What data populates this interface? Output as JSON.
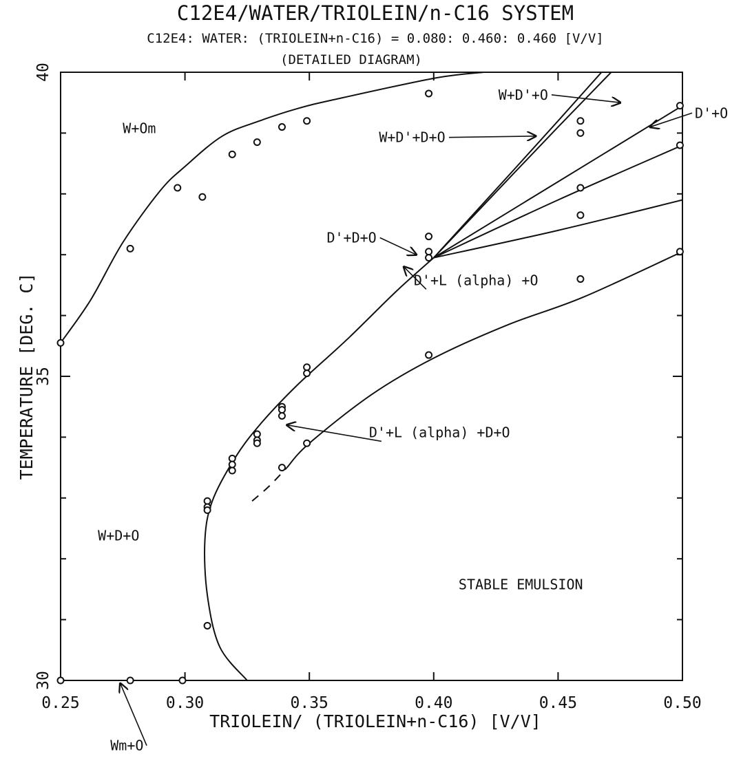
{
  "chart_data": {
    "type": "scatter",
    "title": "C12E4/WATER/TRIOLEIN/n-C16 SYSTEM",
    "subtitle": "C12E4: WATER: (TRIOLEIN+n-C16) = 0.080: 0.460: 0.460 [V/V]",
    "subtitle2": "(DETAILED DIAGRAM)",
    "xlabel": "TRIOLEIN/ (TRIOLEIN+n-C16) [V/V]",
    "ylabel": "TEMPERATURE [DEG. C]",
    "xlim": [
      0.25,
      0.5
    ],
    "ylim": [
      30,
      40
    ],
    "x_ticks": [
      0.25,
      0.3,
      0.35,
      0.4,
      0.45,
      0.5
    ],
    "x_tick_labels": [
      "0.25",
      "0.30",
      "0.35",
      "0.40",
      "0.45",
      "0.50"
    ],
    "y_ticks": [
      30,
      35,
      40
    ],
    "y_tick_labels": [
      "30",
      "35",
      "40"
    ],
    "grid": false,
    "curves": [
      {
        "x": [
          0.25,
          0.262,
          0.275,
          0.29,
          0.3,
          0.315,
          0.33,
          0.345,
          0.36,
          0.4,
          0.42
        ],
        "y": [
          35.55,
          36.25,
          37.2,
          38.05,
          38.45,
          38.95,
          39.2,
          39.4,
          39.55,
          39.9,
          40.0
        ]
      },
      {
        "x": [
          0.25,
          0.325
        ],
        "y": [
          30.0,
          30.0
        ]
      },
      {
        "x": [
          0.325,
          0.314,
          0.309,
          0.308,
          0.311,
          0.32,
          0.33,
          0.345,
          0.365,
          0.385,
          0.4
        ],
        "y": [
          30.0,
          30.55,
          31.4,
          32.3,
          32.95,
          33.65,
          34.2,
          34.85,
          35.6,
          36.4,
          36.95
        ]
      },
      {
        "x": [
          0.4,
          0.45,
          0.5
        ],
        "y": [
          36.95,
          39.2,
          41.5
        ]
      },
      {
        "x": [
          0.4,
          0.45,
          0.5
        ],
        "y": [
          36.95,
          39.1,
          41.2
        ]
      },
      {
        "x": [
          0.4,
          0.45,
          0.5
        ],
        "y": [
          36.95,
          38.2,
          39.45
        ]
      },
      {
        "x": [
          0.4,
          0.45,
          0.5
        ],
        "y": [
          36.95,
          37.9,
          38.8
        ]
      },
      {
        "x": [
          0.4,
          0.45,
          0.5
        ],
        "y": [
          36.95,
          37.4,
          37.9
        ]
      },
      {
        "x": [
          0.341,
          0.35,
          0.375,
          0.4,
          0.43,
          0.46,
          0.5
        ],
        "y": [
          33.5,
          33.9,
          34.7,
          35.3,
          35.85,
          36.3,
          37.05
        ]
      }
    ],
    "dashed_curves": [
      {
        "x": [
          0.327,
          0.334,
          0.341
        ],
        "y": [
          32.95,
          33.2,
          33.5
        ]
      }
    ],
    "points": [
      {
        "x": 0.25,
        "y": 35.55
      },
      {
        "x": 0.278,
        "y": 37.1
      },
      {
        "x": 0.297,
        "y": 38.1
      },
      {
        "x": 0.307,
        "y": 37.95
      },
      {
        "x": 0.319,
        "y": 38.65
      },
      {
        "x": 0.329,
        "y": 38.85
      },
      {
        "x": 0.339,
        "y": 39.1
      },
      {
        "x": 0.349,
        "y": 39.2
      },
      {
        "x": 0.398,
        "y": 39.65
      },
      {
        "x": 0.459,
        "y": 39.2
      },
      {
        "x": 0.459,
        "y": 39.0
      },
      {
        "x": 0.459,
        "y": 38.1
      },
      {
        "x": 0.459,
        "y": 37.65
      },
      {
        "x": 0.459,
        "y": 36.6
      },
      {
        "x": 0.499,
        "y": 39.45
      },
      {
        "x": 0.499,
        "y": 38.8
      },
      {
        "x": 0.499,
        "y": 37.05
      },
      {
        "x": 0.398,
        "y": 37.3
      },
      {
        "x": 0.398,
        "y": 37.05
      },
      {
        "x": 0.398,
        "y": 36.95
      },
      {
        "x": 0.349,
        "y": 35.15
      },
      {
        "x": 0.349,
        "y": 35.05
      },
      {
        "x": 0.339,
        "y": 34.5
      },
      {
        "x": 0.339,
        "y": 34.45
      },
      {
        "x": 0.339,
        "y": 34.35
      },
      {
        "x": 0.329,
        "y": 34.05
      },
      {
        "x": 0.329,
        "y": 33.95
      },
      {
        "x": 0.329,
        "y": 33.9
      },
      {
        "x": 0.319,
        "y": 33.65
      },
      {
        "x": 0.319,
        "y": 33.55
      },
      {
        "x": 0.319,
        "y": 33.45
      },
      {
        "x": 0.309,
        "y": 32.95
      },
      {
        "x": 0.309,
        "y": 32.85
      },
      {
        "x": 0.309,
        "y": 32.8
      },
      {
        "x": 0.309,
        "y": 30.9
      },
      {
        "x": 0.398,
        "y": 35.35
      },
      {
        "x": 0.349,
        "y": 33.9
      },
      {
        "x": 0.339,
        "y": 33.5
      },
      {
        "x": 0.25,
        "y": 30.0
      },
      {
        "x": 0.278,
        "y": 30.0
      },
      {
        "x": 0.299,
        "y": 30.0
      }
    ],
    "annotations": [
      {
        "text": "W+Om",
        "x": 0.275,
        "y": 39.0
      },
      {
        "text": "W+D'+O",
        "x": 0.426,
        "y": 39.55,
        "arrow_to": {
          "x": 0.475,
          "y": 39.5
        }
      },
      {
        "text": "D'+O",
        "x": 0.505,
        "y": 39.25,
        "arrow_to": {
          "x": 0.487,
          "y": 39.1
        }
      },
      {
        "text": "W+D'+D+O",
        "x": 0.378,
        "y": 38.85,
        "arrow_to": {
          "x": 0.441,
          "y": 38.95
        }
      },
      {
        "text": "D'+D+O",
        "x": 0.357,
        "y": 37.2,
        "arrow_to": {
          "x": 0.393,
          "y": 37.0
        }
      },
      {
        "text": "D'+L (alpha) +O",
        "x": 0.392,
        "y": 36.5,
        "arrow_to": {
          "x": 0.388,
          "y": 36.8
        }
      },
      {
        "text": "D'+L (alpha) +D+O",
        "x": 0.374,
        "y": 34.0,
        "arrow_to": {
          "x": 0.341,
          "y": 34.2
        }
      },
      {
        "text": "W+D+O",
        "x": 0.265,
        "y": 32.3
      },
      {
        "text": "STABLE EMULSION",
        "x": 0.41,
        "y": 31.5
      },
      {
        "text": "Wm+O",
        "x": 0.27,
        "y": 28.85,
        "arrow_to": {
          "x": 0.274,
          "y": 29.95
        }
      }
    ]
  }
}
